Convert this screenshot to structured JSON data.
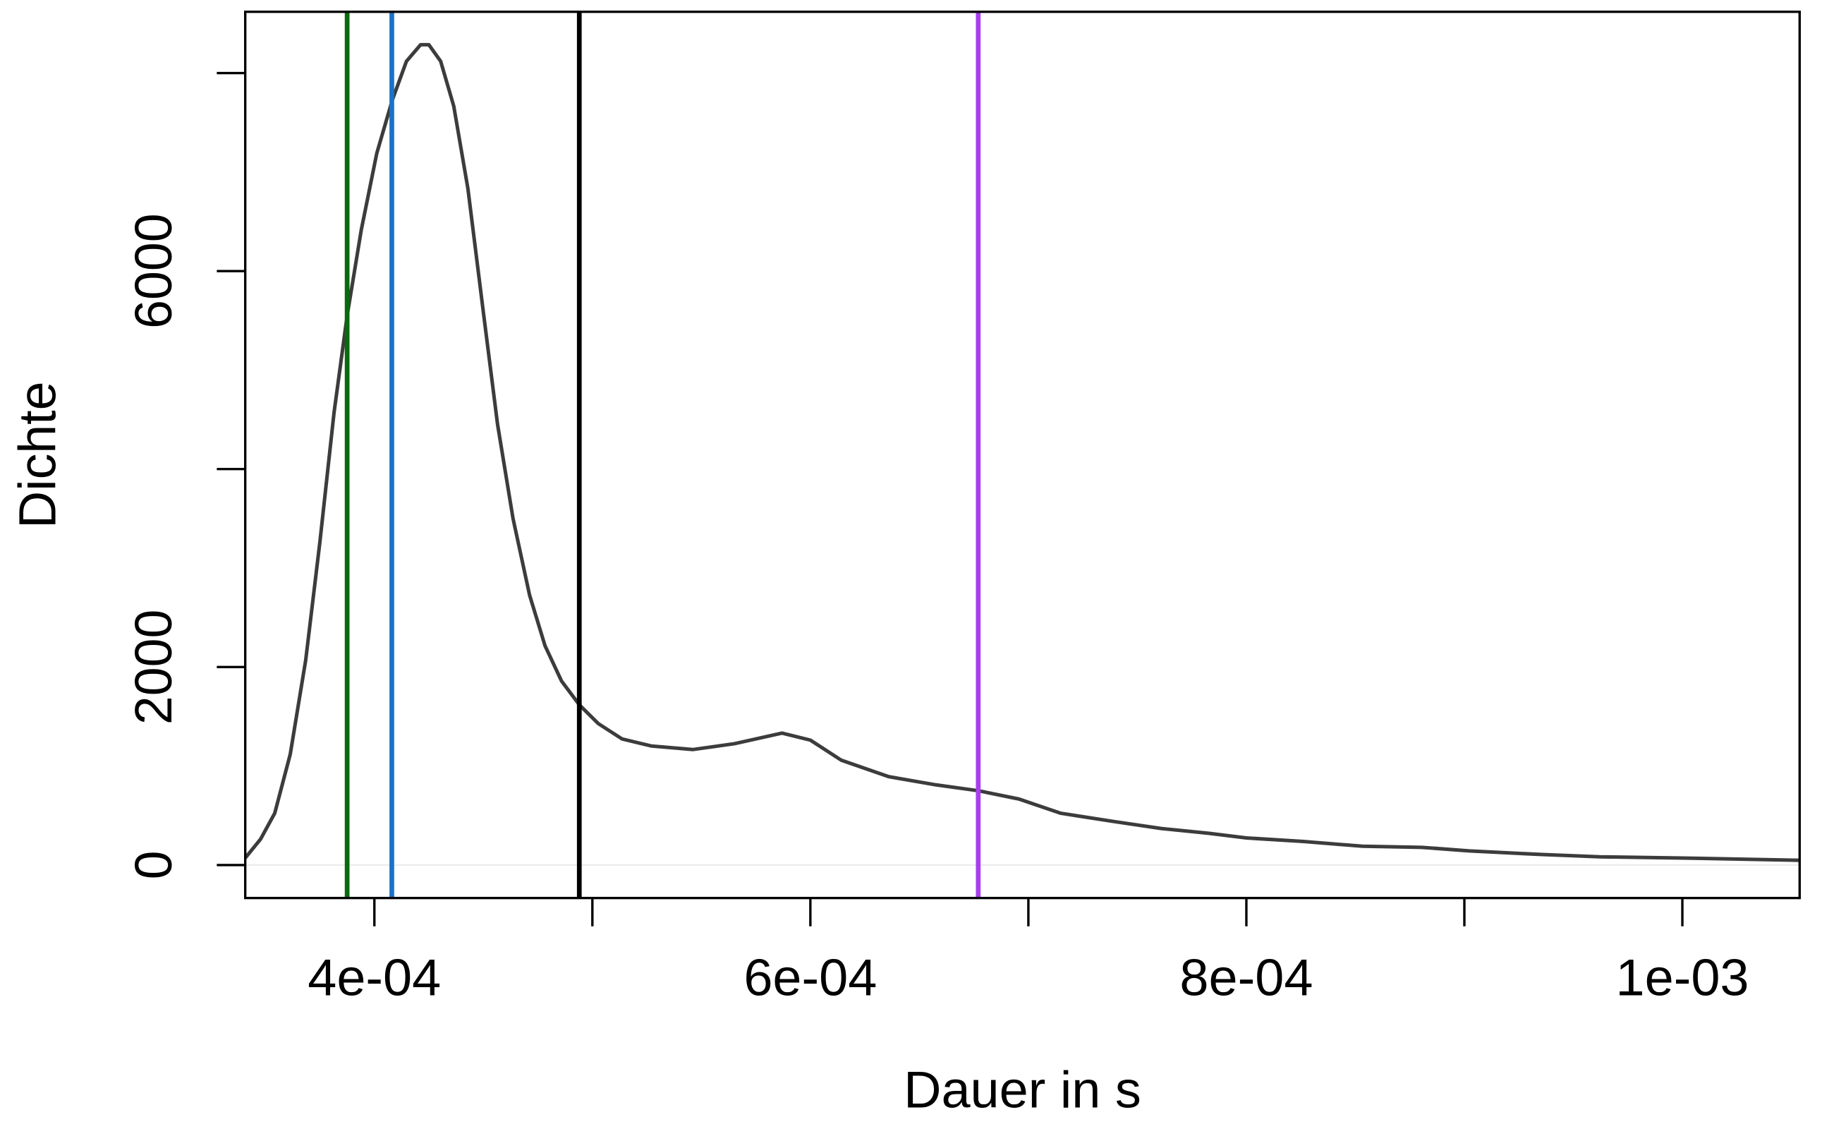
{
  "chart_data": {
    "type": "line",
    "x_label": "Dauer in s",
    "y_label": "Dichte",
    "x": [
      0.00034076,
      0.0003478,
      0.0003543,
      0.0003614,
      0.0003685,
      0.000375,
      0.0003815,
      0.0003875,
      0.000394,
      0.0004011,
      0.0004082,
      0.0004147,
      0.0004212,
      0.000425,
      0.0004304,
      0.0004364,
      0.0004429,
      0.00045,
      0.0004565,
      0.0004636,
      0.0004712,
      0.0004783,
      0.0004859,
      0.000494,
      0.0005027,
      0.0005136,
      0.0005272,
      0.0005462,
      0.0005652,
      0.000587,
      0.0006,
      0.0006141,
      0.0006359,
      0.0006576,
      0.0006772,
      0.0006957,
      0.0007147,
      0.0007391,
      0.0007609,
      0.0007826,
      0.0008,
      0.0008261,
      0.0008533,
      0.0008804,
      0.0009022,
      0.0009348,
      0.000962,
      0.001,
      0.0010538
    ],
    "values": [
      71,
      262,
      524,
      1119,
      2071,
      3262,
      4571,
      5548,
      6417,
      7190,
      7726,
      8119,
      8286,
      8286,
      8119,
      7667,
      6833,
      5583,
      4452,
      3500,
      2726,
      2214,
      1857,
      1619,
      1429,
      1274,
      1202,
      1167,
      1226,
      1333,
      1262,
      1060,
      893,
      810,
      750,
      667,
      524,
      440,
      369,
      321,
      274,
      238,
      190,
      179,
      143,
      107,
      83,
      71,
      48
    ],
    "color": "#3c3c3c",
    "vlines": [
      {
        "x": 0.0003875,
        "color": "#0a6a0a"
      },
      {
        "x": 0.000408,
        "color": "#1a72c8"
      },
      {
        "x": 0.000494,
        "color": "#000000"
      },
      {
        "x": 0.000677,
        "color": "#a83ef0"
      }
    ],
    "zero_line": true,
    "xlim": [
      0.00034076,
      0.0010538
    ],
    "ylim": [
      -333,
      8619
    ],
    "xticks": [
      {
        "value": 0.0004,
        "label": "4e-04"
      },
      {
        "value": 0.0006,
        "label": "6e-04"
      },
      {
        "value": 0.0008,
        "label": "8e-04"
      },
      {
        "value": 0.001,
        "label": "1e-03"
      }
    ],
    "xminorticks": [
      0.0005,
      0.0007,
      0.0009
    ],
    "yticks": [
      0,
      2000,
      6000
    ],
    "yminorticks": [
      4000,
      8000
    ]
  }
}
